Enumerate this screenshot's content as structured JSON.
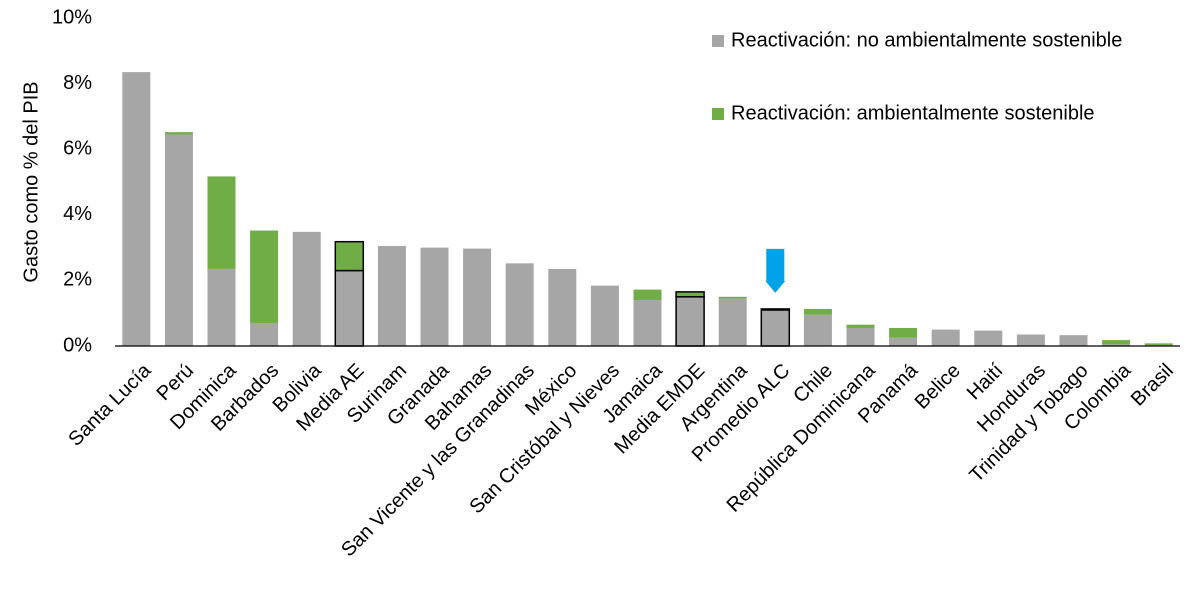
{
  "chart_data": {
    "type": "bar",
    "stacked": true,
    "ylabel": "Gasto como % del PIB",
    "ylim": [
      0,
      10
    ],
    "y_ticks": [
      "0%",
      "2%",
      "4%",
      "6%",
      "8%",
      "10%"
    ],
    "grid": false,
    "legend_position": "top-right",
    "categories": [
      "Santa Lucía",
      "Perú",
      "Dominica",
      "Barbados",
      "Bolivia",
      "Media AE",
      "Surinam",
      "Granada",
      "Bahamas",
      "San Vicente y las Granadinas",
      "México",
      "San Cristóbal y Nieves",
      "Jamaica",
      "Media EMDE",
      "Argentina",
      "Promedio ALC",
      "Chile",
      "República Dominicana",
      "Panamá",
      "Belice",
      "Haití",
      "Honduras",
      "Trinidad y Tobago",
      "Colombia",
      "Brasil"
    ],
    "series": [
      {
        "name": "Reactivación: no ambientalmente sostenible",
        "color": "#a6a6a6",
        "values": [
          8.35,
          6.45,
          2.35,
          0.7,
          3.48,
          2.3,
          3.05,
          3.0,
          2.97,
          2.52,
          2.35,
          1.84,
          1.4,
          1.5,
          1.45,
          1.1,
          0.95,
          0.55,
          0.25,
          0.5,
          0.47,
          0.35,
          0.33,
          0.05,
          0.03
        ]
      },
      {
        "name": "Reactivación: ambientalmente sostenible",
        "color": "#70ad47",
        "values": [
          0,
          0.07,
          2.82,
          2.82,
          0,
          0.88,
          0,
          0,
          0,
          0,
          0,
          0,
          0.32,
          0.15,
          0.05,
          0.03,
          0.18,
          0.1,
          0.3,
          0,
          0,
          0,
          0,
          0.13,
          0.05
        ]
      }
    ],
    "outlined_categories": [
      "Media AE",
      "Media EMDE",
      "Promedio ALC"
    ],
    "annotation": {
      "type": "arrow",
      "target": "Promedio ALC",
      "color": "#00a2e8"
    }
  }
}
